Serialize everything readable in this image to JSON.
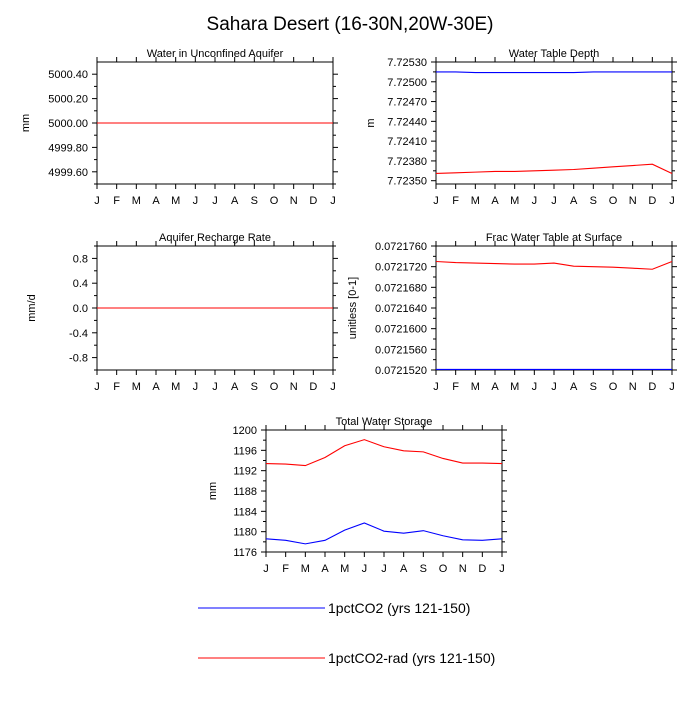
{
  "figure_title": "Sahara Desert (16-30N,20W-30E)",
  "legend": [
    {
      "label": "1pctCO2 (yrs 121-150)",
      "color": "#0000ff"
    },
    {
      "label": "1pctCO2-rad (yrs 121-150)",
      "color": "#ff0000"
    }
  ],
  "chart_data": [
    {
      "type": "line",
      "title": "Water in Unconfined Aquifer",
      "ylabel": "mm",
      "x": [
        "J",
        "F",
        "M",
        "A",
        "M",
        "J",
        "J",
        "A",
        "S",
        "O",
        "N",
        "D",
        "J"
      ],
      "ylim": [
        4999.5,
        5000.5
      ],
      "yticks": [
        "4999.60",
        "4999.80",
        "5000.00",
        "5000.20",
        "5000.40"
      ],
      "ytick_values": [
        4999.6,
        4999.8,
        5000.0,
        5000.2,
        5000.4
      ],
      "series": [
        {
          "name": "1pctCO2 (yrs 121-150)",
          "color": "#0000ff",
          "values": [
            5000.0,
            5000.0,
            5000.0,
            5000.0,
            5000.0,
            5000.0,
            5000.0,
            5000.0,
            5000.0,
            5000.0,
            5000.0,
            5000.0,
            5000.0
          ]
        },
        {
          "name": "1pctCO2-rad (yrs 121-150)",
          "color": "#ff0000",
          "values": [
            5000.0,
            5000.0,
            5000.0,
            5000.0,
            5000.0,
            5000.0,
            5000.0,
            5000.0,
            5000.0,
            5000.0,
            5000.0,
            5000.0,
            5000.0
          ]
        }
      ]
    },
    {
      "type": "line",
      "title": "Water Table Depth",
      "ylabel": "m",
      "x": [
        "J",
        "F",
        "M",
        "A",
        "M",
        "J",
        "J",
        "A",
        "S",
        "O",
        "N",
        "D",
        "J"
      ],
      "ylim": [
        7.72345,
        7.7253
      ],
      "yticks": [
        "7.72350",
        "7.72380",
        "7.72410",
        "7.72440",
        "7.72470",
        "7.72500",
        "7.72530"
      ],
      "ytick_values": [
        7.7235,
        7.7238,
        7.7241,
        7.7244,
        7.7247,
        7.725,
        7.7253
      ],
      "series": [
        {
          "name": "1pctCO2 (yrs 121-150)",
          "color": "#0000ff",
          "values": [
            7.72515,
            7.72515,
            7.72514,
            7.72514,
            7.72514,
            7.72514,
            7.72514,
            7.72514,
            7.72515,
            7.72515,
            7.72515,
            7.72515,
            7.72515
          ]
        },
        {
          "name": "1pctCO2-rad (yrs 121-150)",
          "color": "#ff0000",
          "values": [
            7.72361,
            7.72362,
            7.72363,
            7.72364,
            7.72364,
            7.72365,
            7.72366,
            7.72367,
            7.72369,
            7.72371,
            7.72373,
            7.72375,
            7.72361
          ]
        }
      ]
    },
    {
      "type": "line",
      "title": "Aquifer Recharge Rate",
      "ylabel": "mm/d",
      "x": [
        "J",
        "F",
        "M",
        "A",
        "M",
        "J",
        "J",
        "A",
        "S",
        "O",
        "N",
        "D",
        "J"
      ],
      "ylim": [
        -1.0,
        1.0
      ],
      "yticks": [
        "-0.8",
        "-0.4",
        "0.0",
        "0.4",
        "0.8"
      ],
      "ytick_values": [
        -0.8,
        -0.4,
        0.0,
        0.4,
        0.8
      ],
      "series": [
        {
          "name": "1pctCO2 (yrs 121-150)",
          "color": "#0000ff",
          "values": [
            0,
            0,
            0,
            0,
            0,
            0,
            0,
            0,
            0,
            0,
            0,
            0,
            0
          ]
        },
        {
          "name": "1pctCO2-rad (yrs 121-150)",
          "color": "#ff0000",
          "values": [
            0,
            0,
            0,
            0,
            0,
            0,
            0,
            0,
            0,
            0,
            0,
            0,
            0
          ]
        }
      ]
    },
    {
      "type": "line",
      "title": "Frac Water Table at Surface",
      "ylabel": "unitless [0-1]",
      "x": [
        "J",
        "F",
        "M",
        "A",
        "M",
        "J",
        "J",
        "A",
        "S",
        "O",
        "N",
        "D",
        "J"
      ],
      "ylim": [
        0.072152,
        0.072176
      ],
      "yticks": [
        "0.0721520",
        "0.0721560",
        "0.0721600",
        "0.0721640",
        "0.0721680",
        "0.0721720",
        "0.0721760"
      ],
      "ytick_values": [
        0.072152,
        0.072156,
        0.07216,
        0.072164,
        0.072168,
        0.072172,
        0.072176
      ],
      "series": [
        {
          "name": "1pctCO2 (yrs 121-150)",
          "color": "#0000ff",
          "values": [
            0.0721521,
            0.0721521,
            0.0721521,
            0.0721521,
            0.0721521,
            0.0721521,
            0.0721521,
            0.0721521,
            0.0721521,
            0.0721521,
            0.0721521,
            0.0721521,
            0.0721521
          ]
        },
        {
          "name": "1pctCO2-rad (yrs 121-150)",
          "color": "#ff0000",
          "values": [
            0.072173,
            0.0721728,
            0.0721727,
            0.0721726,
            0.0721725,
            0.0721725,
            0.0721727,
            0.0721721,
            0.072172,
            0.0721719,
            0.0721717,
            0.0721715,
            0.072173
          ]
        }
      ]
    },
    {
      "type": "line",
      "title": "Total Water Storage",
      "ylabel": "mm",
      "x": [
        "J",
        "F",
        "M",
        "A",
        "M",
        "J",
        "J",
        "A",
        "S",
        "O",
        "N",
        "D",
        "J"
      ],
      "ylim": [
        1176,
        1200
      ],
      "yticks": [
        "1176",
        "1180",
        "1184",
        "1188",
        "1192",
        "1196",
        "1200"
      ],
      "ytick_values": [
        1176,
        1180,
        1184,
        1188,
        1192,
        1196,
        1200
      ],
      "series": [
        {
          "name": "1pctCO2 (yrs 121-150)",
          "color": "#0000ff",
          "values": [
            1178.6,
            1178.3,
            1177.6,
            1178.3,
            1180.3,
            1181.7,
            1180.1,
            1179.7,
            1180.2,
            1179.2,
            1178.4,
            1178.3,
            1178.6
          ]
        },
        {
          "name": "1pctCO2-rad (yrs 121-150)",
          "color": "#ff0000",
          "values": [
            1193.4,
            1193.3,
            1193.0,
            1194.6,
            1196.9,
            1198.1,
            1196.7,
            1195.9,
            1195.7,
            1194.4,
            1193.5,
            1193.5,
            1193.4
          ]
        }
      ]
    }
  ]
}
